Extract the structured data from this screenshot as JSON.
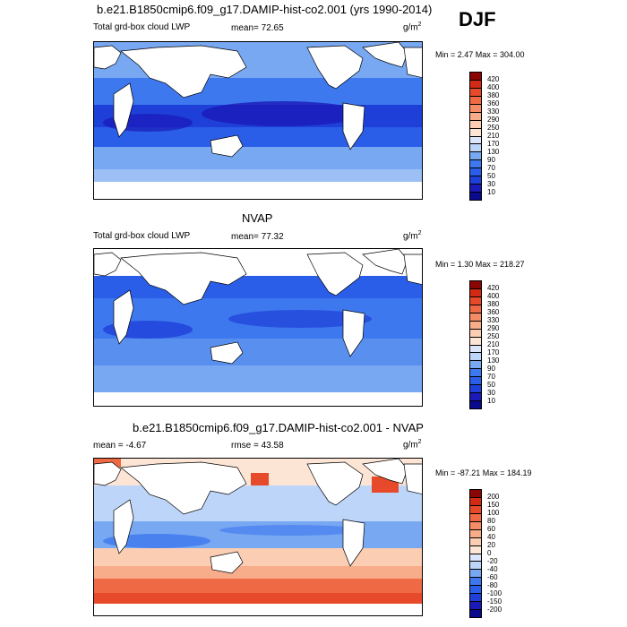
{
  "season": "DJF",
  "colors": {
    "lwp_scale": [
      "#0a0a8c",
      "#1a1ab8",
      "#1f3fd9",
      "#2a5ee8",
      "#3d78ee",
      "#5990f0",
      "#78a8f2",
      "#9cc0f5",
      "#bdd5f8",
      "#dce6fa",
      "#fde5d6",
      "#fbcdb3",
      "#f8ad8a",
      "#f58c66",
      "#ef6a44",
      "#e64a2a",
      "#d22a14",
      "#b71208",
      "#8c0505"
    ],
    "diff_scale": [
      "#0a0a8c",
      "#1a1ab8",
      "#1f3fd9",
      "#2a5ee8",
      "#3d78ee",
      "#5990f0",
      "#78a8f2",
      "#9cc0f5",
      "#bdd5f8",
      "#dce6fa",
      "#ffffff",
      "#fde5d6",
      "#fbcdb3",
      "#f8ad8a",
      "#f58c66",
      "#ef6a44",
      "#e64a2a",
      "#d22a14",
      "#b71208",
      "#8c0505"
    ]
  },
  "panels": [
    {
      "title": "b.e21.B1850cmip6.f09_g17.DAMIP-hist-co2.001 (yrs 1990-2014)",
      "left_label": "Total grd-box cloud LWP",
      "mean_label": "mean=  72.65",
      "units_base": "g/m",
      "units_exp": "2",
      "minmax": "Min =   2.47 Max = 304.00",
      "ticks": [
        "420",
        "400",
        "380",
        "360",
        "330",
        "290",
        "250",
        "210",
        "170",
        "130",
        "90",
        "70",
        "50",
        "30",
        "10"
      ]
    },
    {
      "title": "NVAP",
      "left_label": "Total grd-box cloud LWP",
      "mean_label": "mean=  77.32",
      "units_base": "g/m",
      "units_exp": "2",
      "minmax": "Min =   1.30 Max = 218.27",
      "ticks": [
        "420",
        "400",
        "380",
        "360",
        "330",
        "290",
        "250",
        "210",
        "170",
        "130",
        "90",
        "70",
        "50",
        "30",
        "10"
      ]
    },
    {
      "title": "b.e21.B1850cmip6.f09_g17.DAMIP-hist-co2.001 - NVAP",
      "left_label": "mean =  -4.67",
      "mean_label": "rmse =  43.58",
      "units_base": "g/m",
      "units_exp": "2",
      "minmax": "Min = -87.21 Max = 184.19",
      "ticks": [
        "200",
        "150",
        "100",
        "80",
        "60",
        "40",
        "20",
        "0",
        "-20",
        "-40",
        "-60",
        "-80",
        "-100",
        "-150",
        "-200"
      ]
    }
  ]
}
